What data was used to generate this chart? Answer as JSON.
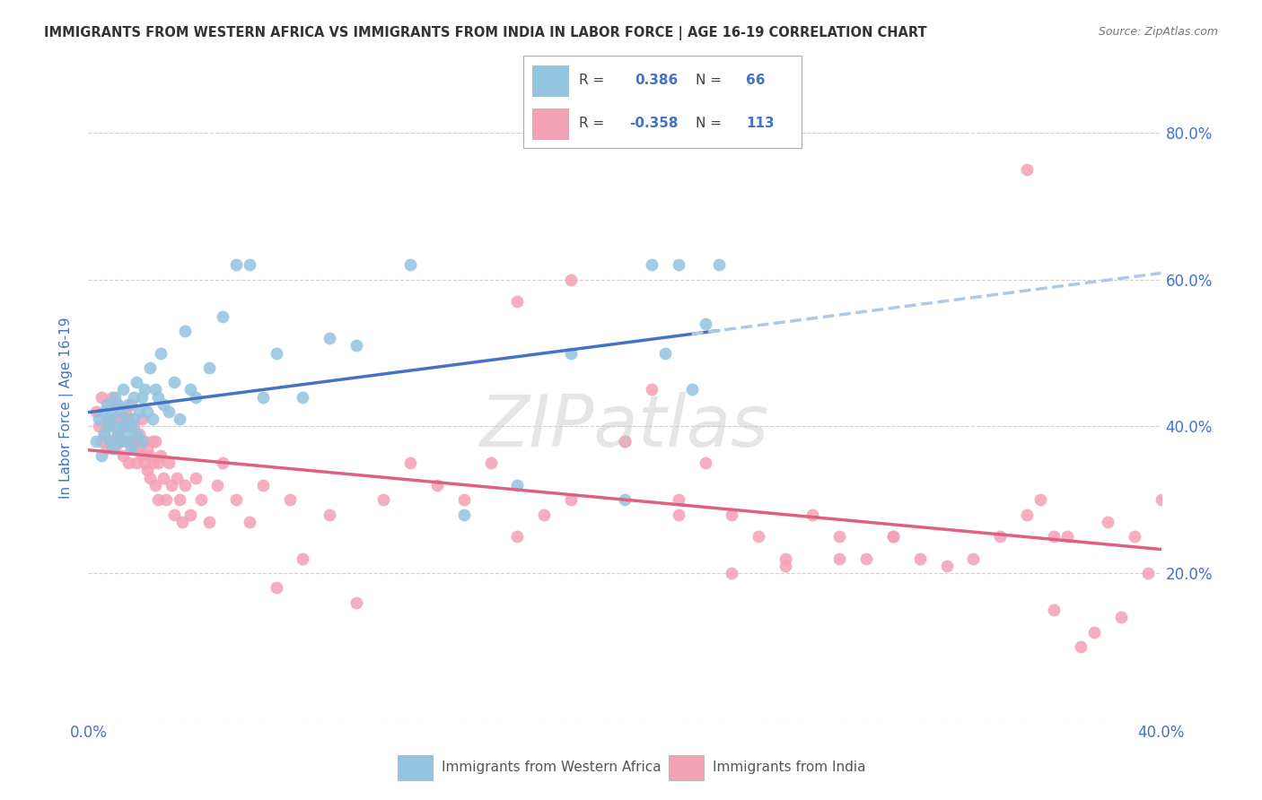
{
  "title": "IMMIGRANTS FROM WESTERN AFRICA VS IMMIGRANTS FROM INDIA IN LABOR FORCE | AGE 16-19 CORRELATION CHART",
  "source": "Source: ZipAtlas.com",
  "ylabel": "In Labor Force | Age 16-19",
  "x_min": 0.0,
  "x_max": 0.4,
  "y_min": 0.0,
  "y_max": 0.85,
  "watermark": "ZIPatlas",
  "r1": "0.386",
  "n1": "66",
  "r2": "-0.358",
  "n2": "113",
  "color_blue": "#93c4e0",
  "color_blue_line": "#4472C4",
  "color_blue_dash": "#b0c8e8",
  "color_pink": "#f4a0b5",
  "color_pink_line": "#e06080",
  "color_text_blue": "#4472C4",
  "background": "#ffffff",
  "grid_color": "#d0d0d0",
  "wa_x": [
    0.003,
    0.004,
    0.005,
    0.006,
    0.006,
    0.007,
    0.007,
    0.008,
    0.008,
    0.009,
    0.009,
    0.01,
    0.01,
    0.011,
    0.011,
    0.012,
    0.012,
    0.013,
    0.013,
    0.014,
    0.014,
    0.015,
    0.015,
    0.016,
    0.016,
    0.017,
    0.017,
    0.018,
    0.018,
    0.019,
    0.02,
    0.02,
    0.021,
    0.022,
    0.023,
    0.024,
    0.025,
    0.026,
    0.027,
    0.028,
    0.03,
    0.032,
    0.034,
    0.036,
    0.038,
    0.04,
    0.045,
    0.05,
    0.055,
    0.06,
    0.065,
    0.07,
    0.08,
    0.09,
    0.1,
    0.12,
    0.14,
    0.16,
    0.18,
    0.2,
    0.21,
    0.215,
    0.22,
    0.225,
    0.23,
    0.235
  ],
  "wa_y": [
    0.38,
    0.41,
    0.36,
    0.39,
    0.42,
    0.4,
    0.43,
    0.38,
    0.41,
    0.37,
    0.42,
    0.4,
    0.44,
    0.39,
    0.43,
    0.38,
    0.42,
    0.4,
    0.45,
    0.39,
    0.41,
    0.43,
    0.38,
    0.4,
    0.37,
    0.44,
    0.41,
    0.46,
    0.39,
    0.42,
    0.44,
    0.38,
    0.45,
    0.42,
    0.48,
    0.41,
    0.45,
    0.44,
    0.5,
    0.43,
    0.42,
    0.46,
    0.41,
    0.53,
    0.45,
    0.44,
    0.48,
    0.55,
    0.62,
    0.62,
    0.44,
    0.5,
    0.44,
    0.52,
    0.51,
    0.62,
    0.28,
    0.32,
    0.5,
    0.3,
    0.62,
    0.5,
    0.62,
    0.45,
    0.54,
    0.62
  ],
  "india_x": [
    0.003,
    0.004,
    0.005,
    0.005,
    0.006,
    0.007,
    0.007,
    0.008,
    0.008,
    0.009,
    0.009,
    0.01,
    0.01,
    0.011,
    0.011,
    0.012,
    0.012,
    0.013,
    0.013,
    0.014,
    0.014,
    0.015,
    0.015,
    0.016,
    0.016,
    0.017,
    0.017,
    0.018,
    0.018,
    0.019,
    0.019,
    0.02,
    0.02,
    0.021,
    0.021,
    0.022,
    0.022,
    0.023,
    0.023,
    0.024,
    0.024,
    0.025,
    0.025,
    0.026,
    0.026,
    0.027,
    0.028,
    0.029,
    0.03,
    0.031,
    0.032,
    0.033,
    0.034,
    0.035,
    0.036,
    0.038,
    0.04,
    0.042,
    0.045,
    0.048,
    0.05,
    0.055,
    0.06,
    0.065,
    0.07,
    0.075,
    0.08,
    0.09,
    0.1,
    0.11,
    0.12,
    0.13,
    0.14,
    0.15,
    0.16,
    0.17,
    0.18,
    0.2,
    0.21,
    0.22,
    0.23,
    0.24,
    0.25,
    0.26,
    0.27,
    0.28,
    0.29,
    0.3,
    0.31,
    0.32,
    0.33,
    0.34,
    0.35,
    0.355,
    0.36,
    0.365,
    0.37,
    0.375,
    0.38,
    0.385,
    0.39,
    0.395,
    0.4,
    0.35,
    0.36,
    0.3,
    0.28,
    0.26,
    0.24,
    0.22,
    0.2,
    0.18,
    0.16
  ],
  "india_y": [
    0.42,
    0.4,
    0.38,
    0.44,
    0.39,
    0.41,
    0.37,
    0.43,
    0.4,
    0.38,
    0.44,
    0.41,
    0.37,
    0.43,
    0.39,
    0.41,
    0.38,
    0.4,
    0.36,
    0.42,
    0.38,
    0.35,
    0.41,
    0.38,
    0.43,
    0.37,
    0.4,
    0.38,
    0.35,
    0.39,
    0.37,
    0.41,
    0.36,
    0.38,
    0.35,
    0.37,
    0.34,
    0.36,
    0.33,
    0.38,
    0.35,
    0.32,
    0.38,
    0.35,
    0.3,
    0.36,
    0.33,
    0.3,
    0.35,
    0.32,
    0.28,
    0.33,
    0.3,
    0.27,
    0.32,
    0.28,
    0.33,
    0.3,
    0.27,
    0.32,
    0.35,
    0.3,
    0.27,
    0.32,
    0.18,
    0.3,
    0.22,
    0.28,
    0.16,
    0.3,
    0.35,
    0.32,
    0.3,
    0.35,
    0.25,
    0.28,
    0.3,
    0.38,
    0.45,
    0.3,
    0.35,
    0.28,
    0.25,
    0.22,
    0.28,
    0.25,
    0.22,
    0.25,
    0.22,
    0.21,
    0.22,
    0.25,
    0.28,
    0.3,
    0.15,
    0.25,
    0.1,
    0.12,
    0.27,
    0.14,
    0.25,
    0.2,
    0.3,
    0.75,
    0.25,
    0.25,
    0.22,
    0.21,
    0.2,
    0.28,
    0.38,
    0.6,
    0.57
  ]
}
